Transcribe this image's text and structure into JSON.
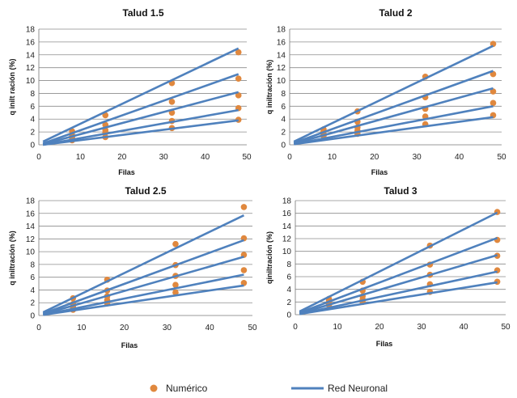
{
  "colors": {
    "points": "#E0883E",
    "lines": "#4F81BD",
    "grid": "#8C8C8C"
  },
  "legend": {
    "points_label": "Numérico",
    "lines_label": "Red Neuronal",
    "placement": "bottom"
  },
  "chart_data": [
    {
      "type": "scatter+line",
      "title": "Talud 1.5",
      "xlabel": "Filas",
      "ylabel": "q inilt ración (%)",
      "xlim": [
        0,
        50
      ],
      "ylim": [
        0,
        18
      ],
      "xticks": [
        0,
        10,
        20,
        30,
        40,
        50
      ],
      "yticks": [
        0,
        2,
        4,
        6,
        8,
        10,
        12,
        14,
        16,
        18
      ],
      "grid": "horizontal",
      "points_x": [
        8,
        16,
        32,
        48
      ],
      "points": [
        [
          2.1,
          4.6,
          9.6,
          14.4
        ],
        [
          1.5,
          3.1,
          6.7,
          10.3
        ],
        [
          1.1,
          2.3,
          5.0,
          7.7
        ],
        [
          0.9,
          1.9,
          3.7,
          5.7
        ],
        [
          0.7,
          1.2,
          2.6,
          3.9
        ]
      ],
      "lines_x": [
        1,
        48
      ],
      "lines": [
        [
          0.5,
          15.0
        ],
        [
          0.2,
          11.0
        ],
        [
          0.1,
          8.2
        ],
        [
          0.0,
          5.4
        ],
        [
          0.0,
          3.8
        ]
      ]
    },
    {
      "type": "scatter+line",
      "title": "Talud 2",
      "xlabel": "Filas",
      "ylabel": "q iniltración (%)",
      "xlim": [
        0,
        50
      ],
      "ylim": [
        0,
        18
      ],
      "xticks": [
        0,
        10,
        20,
        30,
        40,
        50
      ],
      "yticks": [
        0,
        2,
        4,
        6,
        8,
        10,
        12,
        14,
        16,
        18
      ],
      "grid": "horizontal",
      "points_x": [
        8,
        16,
        32,
        48
      ],
      "points": [
        [
          2.4,
          5.2,
          10.6,
          15.7
        ],
        [
          2.1,
          3.6,
          7.4,
          11.0
        ],
        [
          1.8,
          2.7,
          5.6,
          8.3
        ],
        [
          1.6,
          2.2,
          4.4,
          6.5
        ],
        [
          1.4,
          1.7,
          3.2,
          4.6
        ]
      ],
      "lines_x": [
        1,
        48
      ],
      "lines": [
        [
          0.5,
          15.4
        ],
        [
          0.3,
          11.5
        ],
        [
          0.2,
          8.8
        ],
        [
          0.1,
          6.0
        ],
        [
          0.1,
          4.3
        ]
      ]
    },
    {
      "type": "scatter+line",
      "title": "Talud 2.5",
      "xlabel": "Filas",
      "ylabel": "q iniltración (%)",
      "xlim": [
        0,
        50
      ],
      "ylim": [
        0,
        18
      ],
      "xticks": [
        0,
        10,
        20,
        30,
        40,
        50
      ],
      "yticks": [
        0,
        2,
        4,
        6,
        8,
        10,
        12,
        14,
        16,
        18
      ],
      "grid": "horizontal",
      "points_x": [
        8,
        16,
        32,
        48
      ],
      "points": [
        [
          2.7,
          5.6,
          11.2,
          17.0
        ],
        [
          1.8,
          3.9,
          7.9,
          12.1
        ],
        [
          1.4,
          3.0,
          6.2,
          9.5
        ],
        [
          1.1,
          2.4,
          4.8,
          7.1
        ],
        [
          0.9,
          1.9,
          3.6,
          5.1
        ]
      ],
      "lines_x": [
        1,
        48
      ],
      "lines": [
        [
          0.5,
          15.7
        ],
        [
          0.3,
          11.8
        ],
        [
          0.2,
          9.2
        ],
        [
          0.1,
          6.4
        ],
        [
          0.1,
          4.7
        ]
      ]
    },
    {
      "type": "scatter+line",
      "title": "Talud 3",
      "xlabel": "Filas",
      "ylabel": "qiniltración (%)",
      "xlim": [
        0,
        50
      ],
      "ylim": [
        0,
        18
      ],
      "xticks": [
        0,
        10,
        20,
        30,
        40,
        50
      ],
      "yticks": [
        0,
        2,
        4,
        6,
        8,
        10,
        12,
        14,
        16,
        18
      ],
      "grid": "horizontal",
      "points_x": [
        8,
        16,
        32,
        48
      ],
      "points": [
        [
          2.5,
          5.2,
          10.9,
          16.2
        ],
        [
          2.2,
          3.8,
          7.9,
          11.8
        ],
        [
          1.9,
          2.9,
          6.3,
          9.3
        ],
        [
          1.7,
          2.4,
          4.8,
          7.0
        ],
        [
          1.5,
          2.0,
          3.6,
          5.2
        ]
      ],
      "lines_x": [
        1,
        48
      ],
      "lines": [
        [
          0.5,
          16.1
        ],
        [
          0.3,
          12.1
        ],
        [
          0.2,
          9.4
        ],
        [
          0.1,
          6.8
        ],
        [
          0.1,
          5.1
        ]
      ]
    }
  ]
}
